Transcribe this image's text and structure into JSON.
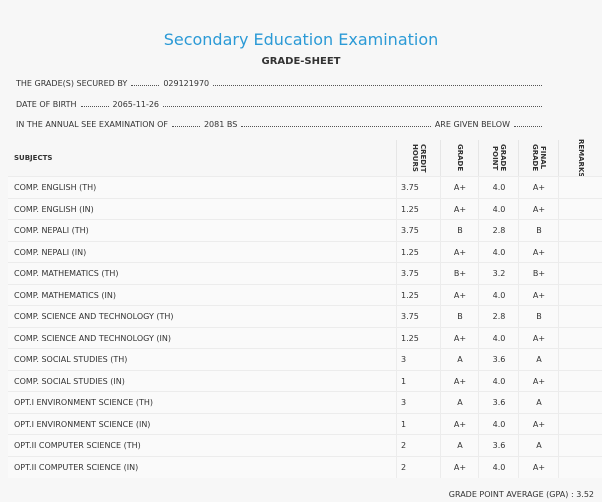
{
  "header": {
    "title": "Secondary Education Examination",
    "subtitle": "GRADE-SHEET"
  },
  "info": [
    {
      "label": "THE GRADE(S) SECURED BY",
      "value": "029121970"
    },
    {
      "label": "DATE OF BIRTH",
      "value": "2065-11-26"
    },
    {
      "label": "IN THE ANNUAL SEE EXAMINATION OF",
      "value": "2081 BS",
      "suffix": "ARE GIVEN BELOW"
    }
  ],
  "table": {
    "columns": [
      "SUBJECTS",
      "CREDIT HOURS",
      "GRADE",
      "GRADE POINT",
      "FINAL GRADE",
      "REMARKS"
    ],
    "rows": [
      [
        "COMP. ENGLISH (TH)",
        "3.75",
        "A+",
        "4.0",
        "A+"
      ],
      [
        "COMP. ENGLISH (IN)",
        "1.25",
        "A+",
        "4.0",
        "A+"
      ],
      [
        "COMP. NEPALI (TH)",
        "3.75",
        "B",
        "2.8",
        "B"
      ],
      [
        "COMP. NEPALI (IN)",
        "1.25",
        "A+",
        "4.0",
        "A+"
      ],
      [
        "COMP. MATHEMATICS (TH)",
        "3.75",
        "B+",
        "3.2",
        "B+"
      ],
      [
        "COMP. MATHEMATICS (IN)",
        "1.25",
        "A+",
        "4.0",
        "A+"
      ],
      [
        "COMP. SCIENCE AND TECHNOLOGY (TH)",
        "3.75",
        "B",
        "2.8",
        "B"
      ],
      [
        "COMP. SCIENCE AND TECHNOLOGY (IN)",
        "1.25",
        "A+",
        "4.0",
        "A+"
      ],
      [
        "COMP. SOCIAL STUDIES (TH)",
        "3",
        "A",
        "3.6",
        "A"
      ],
      [
        "COMP. SOCIAL STUDIES (IN)",
        "1",
        "A+",
        "4.0",
        "A+"
      ],
      [
        "OPT.I ENVIRONMENT SCIENCE (TH)",
        "3",
        "A",
        "3.6",
        "A"
      ],
      [
        "OPT.I ENVIRONMENT SCIENCE (IN)",
        "1",
        "A+",
        "4.0",
        "A+"
      ],
      [
        "OPT.II COMPUTER SCIENCE (TH)",
        "2",
        "A",
        "3.6",
        "A"
      ],
      [
        "OPT.II COMPUTER SCIENCE (IN)",
        "2",
        "A+",
        "4.0",
        "A+"
      ]
    ]
  },
  "footer": {
    "gpa_label": "GRADE POINT AVERAGE (GPA) :",
    "gpa": "3.52"
  }
}
